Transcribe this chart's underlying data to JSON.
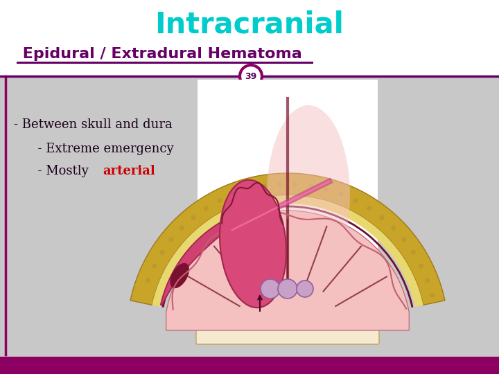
{
  "title_main": "Intracranial",
  "title_sub": " Epidural / Extradural Hematoma",
  "slide_number": "39",
  "bullet1": "- Between skull and dura",
  "bullet2": "      - Extreme emergency",
  "bullet3_prefix": "      - Mostly ",
  "bullet3_highlight": "arterial",
  "bg_color": "#c8c8c8",
  "header_bg": "#ffffff",
  "footer_color": "#8b0060",
  "title_main_color": "#00cccc",
  "title_sub_color": "#660066",
  "underline_color": "#660066",
  "circle_outer_color": "#8b0060",
  "circle_fill": "#ffffff",
  "body_text_color": "#1a001a",
  "highlight_color": "#cc0000",
  "number_color": "#550055",
  "left_border_color": "#8b0060",
  "skull_outer": "#c8a820",
  "skull_inner": "#e8d080",
  "skull_texture": "#b89030",
  "brain_light": "#f5c0c0",
  "brain_mid": "#e89898",
  "hema_color": "#d04070",
  "hema_dark": "#a02050",
  "dura_color": "#6a1030",
  "tissue_cream": "#f5ead0",
  "spine_lavender": "#c8a0c8"
}
